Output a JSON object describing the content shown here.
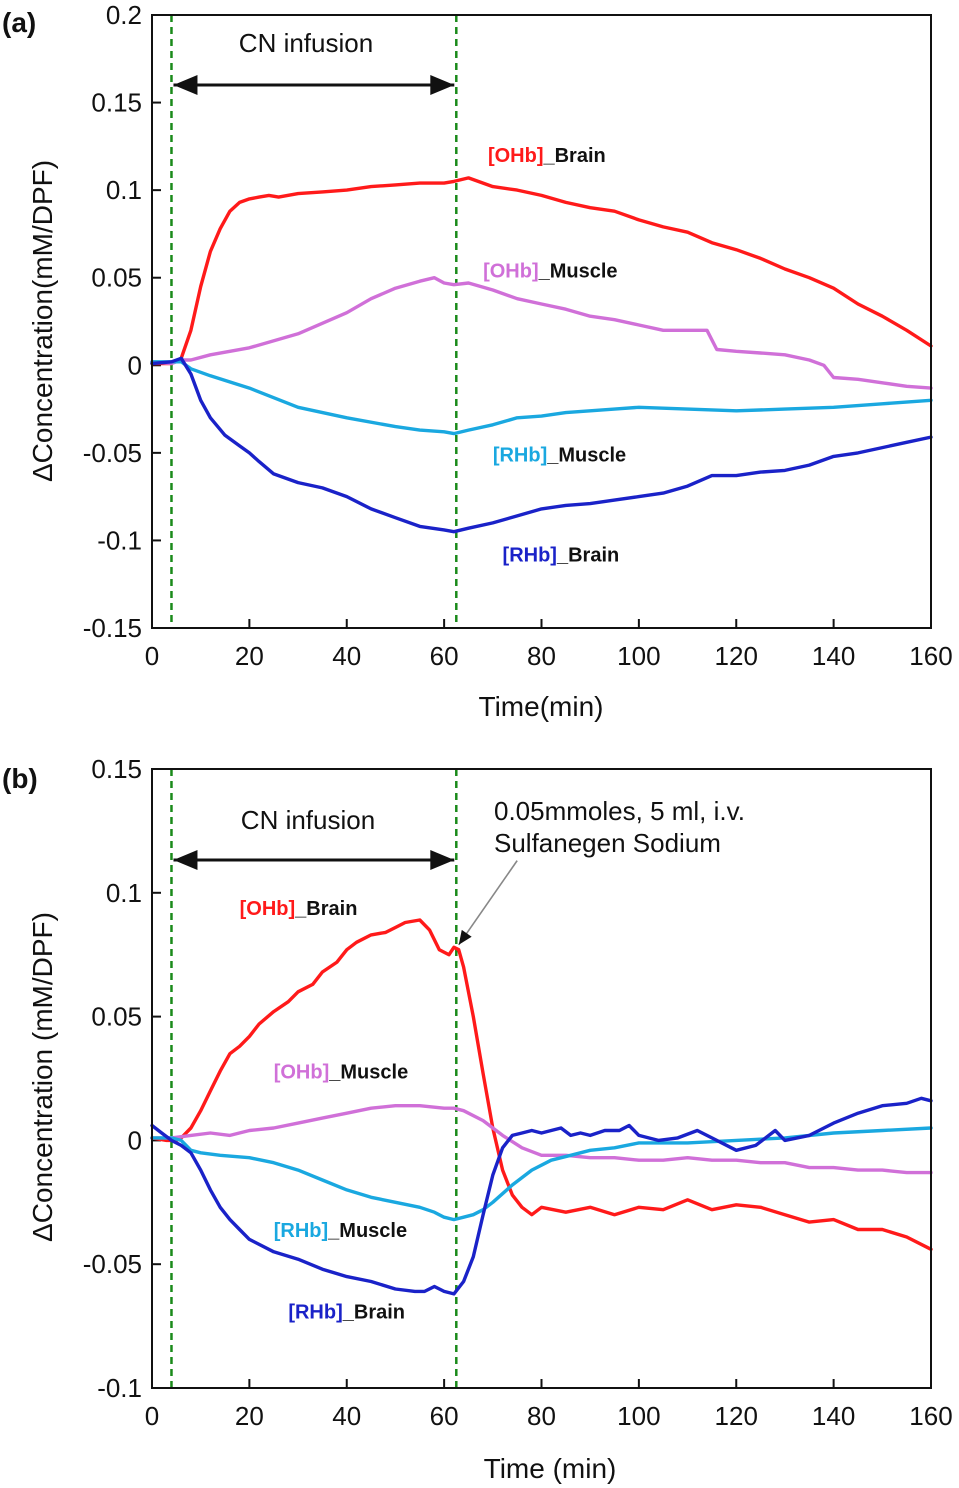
{
  "chart_data": [
    {
      "type": "line",
      "panel": "(a)",
      "xlabel": "Time(min)",
      "ylabel": "ΔConcentration(mM/DPF)",
      "xlim": [
        0,
        160
      ],
      "ylim": [
        -0.15,
        0.2
      ],
      "xticks": [
        0,
        20,
        40,
        60,
        80,
        100,
        120,
        140,
        160
      ],
      "yticks": [
        -0.15,
        -0.1,
        -0.05,
        0,
        0.05,
        0.1,
        0.15,
        0.2
      ],
      "xtick_labels": [
        "0",
        "20",
        "40",
        "60",
        "80",
        "100",
        "120",
        "140",
        "160"
      ],
      "ytick_labels": [
        "-0.15",
        "-0.1",
        "-0.05",
        "0",
        "0.05",
        "0.1",
        "0.15",
        "0.2"
      ],
      "vlines": [
        4,
        62.5
      ],
      "infusion_label": "CN infusion",
      "infusion_range": [
        4,
        62.5
      ],
      "series": [
        {
          "name": "[OHb]_Brain",
          "color": "#ff1a1a",
          "label_parts": [
            "[OHb]",
            "_Brain"
          ],
          "label_at": [
            69,
            0.116
          ],
          "x": [
            0,
            4,
            6,
            8,
            10,
            12,
            14,
            16,
            18,
            20,
            22,
            24,
            26,
            30,
            35,
            40,
            45,
            50,
            55,
            60,
            62,
            65,
            70,
            75,
            80,
            85,
            90,
            95,
            100,
            105,
            110,
            115,
            120,
            125,
            130,
            135,
            140,
            145,
            150,
            155,
            160
          ],
          "values": [
            0.001,
            0.001,
            0.004,
            0.02,
            0.045,
            0.065,
            0.078,
            0.088,
            0.093,
            0.095,
            0.096,
            0.097,
            0.096,
            0.098,
            0.099,
            0.1,
            0.102,
            0.103,
            0.104,
            0.104,
            0.105,
            0.107,
            0.102,
            0.1,
            0.097,
            0.093,
            0.09,
            0.088,
            0.083,
            0.079,
            0.076,
            0.07,
            0.066,
            0.061,
            0.055,
            0.05,
            0.044,
            0.035,
            0.028,
            0.02,
            0.011
          ]
        },
        {
          "name": "[OHb]_Muscle",
          "color": "#d070d8",
          "label_parts": [
            "[OHb]",
            "_Muscle"
          ],
          "label_at": [
            68,
            0.05
          ],
          "x": [
            0,
            4,
            6,
            8,
            12,
            20,
            30,
            40,
            45,
            50,
            55,
            58,
            60,
            62,
            65,
            70,
            75,
            80,
            85,
            90,
            95,
            100,
            105,
            110,
            114,
            116,
            120,
            125,
            130,
            135,
            138,
            140,
            145,
            150,
            155,
            160
          ],
          "values": [
            0.002,
            0.001,
            0.003,
            0.003,
            0.006,
            0.01,
            0.018,
            0.03,
            0.038,
            0.044,
            0.048,
            0.05,
            0.047,
            0.046,
            0.047,
            0.043,
            0.038,
            0.035,
            0.032,
            0.028,
            0.026,
            0.023,
            0.02,
            0.02,
            0.02,
            0.009,
            0.008,
            0.007,
            0.006,
            0.003,
            0.0,
            -0.007,
            -0.008,
            -0.01,
            -0.012,
            -0.013
          ]
        },
        {
          "name": "[RHb]_Muscle",
          "color": "#1aa8e0",
          "label_parts": [
            "[RHb]",
            "_Muscle"
          ],
          "label_at": [
            70,
            -0.055
          ],
          "x": [
            0,
            4,
            6,
            8,
            12,
            20,
            30,
            40,
            50,
            55,
            60,
            62,
            65,
            70,
            75,
            80,
            85,
            90,
            95,
            100,
            110,
            120,
            130,
            140,
            150,
            160
          ],
          "values": [
            0.002,
            0.002,
            0.002,
            -0.002,
            -0.006,
            -0.013,
            -0.024,
            -0.03,
            -0.035,
            -0.037,
            -0.038,
            -0.039,
            -0.037,
            -0.034,
            -0.03,
            -0.029,
            -0.027,
            -0.026,
            -0.025,
            -0.024,
            -0.025,
            -0.026,
            -0.025,
            -0.024,
            -0.022,
            -0.02
          ]
        },
        {
          "name": "[RHb]_Brain",
          "color": "#1a22c8",
          "label_parts": [
            "[RHb]",
            "_Brain"
          ],
          "label_at": [
            72,
            -0.112
          ],
          "x": [
            0,
            4,
            6,
            8,
            10,
            12,
            15,
            18,
            20,
            22,
            25,
            28,
            30,
            35,
            40,
            45,
            50,
            55,
            60,
            62,
            65,
            70,
            75,
            80,
            85,
            90,
            95,
            100,
            105,
            110,
            115,
            120,
            125,
            130,
            135,
            140,
            145,
            150,
            155,
            160
          ],
          "values": [
            0.001,
            0.002,
            0.004,
            -0.005,
            -0.02,
            -0.03,
            -0.04,
            -0.046,
            -0.05,
            -0.055,
            -0.062,
            -0.065,
            -0.067,
            -0.07,
            -0.075,
            -0.082,
            -0.087,
            -0.092,
            -0.094,
            -0.095,
            -0.093,
            -0.09,
            -0.086,
            -0.082,
            -0.08,
            -0.079,
            -0.077,
            -0.075,
            -0.073,
            -0.069,
            -0.063,
            -0.063,
            -0.061,
            -0.06,
            -0.057,
            -0.052,
            -0.05,
            -0.047,
            -0.044,
            -0.041
          ]
        }
      ]
    },
    {
      "type": "line",
      "panel": "(b)",
      "xlabel": "Time (min)",
      "ylabel": "ΔConcentration (mM/DPF)",
      "xlim": [
        0,
        160
      ],
      "ylim": [
        -0.1,
        0.15
      ],
      "xticks": [
        0,
        20,
        40,
        60,
        80,
        100,
        120,
        140,
        160
      ],
      "yticks": [
        -0.1,
        -0.05,
        0,
        0.05,
        0.1,
        0.15
      ],
      "xtick_labels": [
        "0",
        "20",
        "40",
        "60",
        "80",
        "100",
        "120",
        "140",
        "160"
      ],
      "ytick_labels": [
        "-0.1",
        "-0.05",
        "0",
        "0.05",
        "0.1",
        "0.15"
      ],
      "vlines": [
        4,
        62.5
      ],
      "infusion_label": "CN infusion",
      "infusion_range": [
        4,
        62.5
      ],
      "annotation_lines": [
        "0.05mmoles, 5 ml, i.v.",
        "Sulfanegen Sodium"
      ],
      "annotation_target": [
        63,
        0.079
      ],
      "annotation_from": [
        75,
        0.113
      ],
      "series": [
        {
          "name": "[OHb]_Brain",
          "color": "#ff1a1a",
          "label_parts": [
            "[OHb]",
            "_Brain"
          ],
          "label_at": [
            18,
            0.091
          ],
          "x": [
            0,
            3,
            5,
            6,
            8,
            10,
            12,
            14,
            16,
            18,
            20,
            22,
            25,
            28,
            30,
            33,
            35,
            38,
            40,
            42,
            45,
            48,
            50,
            52,
            55,
            57,
            59,
            61,
            62,
            63,
            64,
            66,
            68,
            70,
            72,
            74,
            76,
            78,
            80,
            85,
            90,
            95,
            100,
            105,
            110,
            115,
            120,
            125,
            130,
            135,
            140,
            145,
            150,
            155,
            160
          ],
          "values": [
            0.001,
            0.0,
            0.0,
            0.001,
            0.005,
            0.012,
            0.02,
            0.028,
            0.035,
            0.038,
            0.042,
            0.047,
            0.052,
            0.056,
            0.06,
            0.063,
            0.068,
            0.072,
            0.077,
            0.08,
            0.083,
            0.084,
            0.086,
            0.088,
            0.089,
            0.085,
            0.077,
            0.075,
            0.078,
            0.077,
            0.07,
            0.05,
            0.027,
            0.005,
            -0.012,
            -0.022,
            -0.027,
            -0.03,
            -0.027,
            -0.029,
            -0.027,
            -0.03,
            -0.027,
            -0.028,
            -0.024,
            -0.028,
            -0.026,
            -0.027,
            -0.03,
            -0.033,
            -0.032,
            -0.036,
            -0.036,
            -0.039,
            -0.044
          ]
        },
        {
          "name": "[OHb]_Muscle",
          "color": "#d070d8",
          "label_parts": [
            "[OHb]",
            "_Muscle"
          ],
          "label_at": [
            25,
            0.025
          ],
          "x": [
            0,
            4,
            8,
            12,
            16,
            20,
            25,
            30,
            35,
            40,
            45,
            50,
            55,
            60,
            62,
            64,
            68,
            72,
            76,
            80,
            85,
            90,
            95,
            100,
            105,
            110,
            115,
            120,
            125,
            130,
            135,
            140,
            145,
            150,
            155,
            160
          ],
          "values": [
            0.001,
            0.001,
            0.002,
            0.003,
            0.002,
            0.004,
            0.005,
            0.007,
            0.009,
            0.011,
            0.013,
            0.014,
            0.014,
            0.013,
            0.013,
            0.012,
            0.008,
            0.002,
            -0.003,
            -0.006,
            -0.006,
            -0.007,
            -0.007,
            -0.008,
            -0.008,
            -0.007,
            -0.008,
            -0.008,
            -0.009,
            -0.009,
            -0.011,
            -0.011,
            -0.012,
            -0.012,
            -0.013,
            -0.013
          ]
        },
        {
          "name": "[RHb]_Muscle",
          "color": "#1aa8e0",
          "label_parts": [
            "[RHb]",
            "_Muscle"
          ],
          "label_at": [
            25,
            -0.039
          ],
          "x": [
            0,
            4,
            6,
            8,
            10,
            14,
            20,
            25,
            30,
            35,
            40,
            45,
            50,
            55,
            58,
            60,
            62,
            64,
            66,
            68,
            70,
            74,
            78,
            82,
            86,
            90,
            95,
            100,
            110,
            120,
            130,
            140,
            150,
            160
          ],
          "values": [
            0.001,
            0.001,
            0.0,
            -0.004,
            -0.005,
            -0.006,
            -0.007,
            -0.009,
            -0.012,
            -0.016,
            -0.02,
            -0.023,
            -0.025,
            -0.027,
            -0.029,
            -0.031,
            -0.032,
            -0.031,
            -0.03,
            -0.028,
            -0.025,
            -0.018,
            -0.012,
            -0.008,
            -0.006,
            -0.004,
            -0.003,
            -0.001,
            -0.001,
            0.0,
            0.001,
            0.003,
            0.004,
            0.005
          ]
        },
        {
          "name": "[RHb]_Brain",
          "color": "#1a22c8",
          "label_parts": [
            "[RHb]",
            "_Brain"
          ],
          "label_at": [
            28,
            -0.072
          ],
          "x": [
            0,
            2,
            4,
            6,
            8,
            10,
            12,
            14,
            16,
            18,
            20,
            25,
            30,
            35,
            40,
            45,
            50,
            54,
            56,
            58,
            60,
            62,
            64,
            66,
            68,
            70,
            72,
            74,
            76,
            78,
            80,
            82,
            84,
            86,
            88,
            90,
            93,
            96,
            98,
            100,
            104,
            108,
            112,
            116,
            120,
            124,
            128,
            130,
            135,
            140,
            145,
            150,
            155,
            158,
            160
          ],
          "values": [
            0.006,
            0.003,
            0.0,
            -0.002,
            -0.005,
            -0.012,
            -0.02,
            -0.027,
            -0.032,
            -0.036,
            -0.04,
            -0.045,
            -0.048,
            -0.052,
            -0.055,
            -0.057,
            -0.06,
            -0.061,
            -0.061,
            -0.059,
            -0.061,
            -0.062,
            -0.057,
            -0.047,
            -0.03,
            -0.014,
            -0.003,
            0.002,
            0.003,
            0.004,
            0.003,
            0.004,
            0.005,
            0.002,
            0.003,
            0.002,
            0.004,
            0.004,
            0.006,
            0.002,
            0.0,
            0.001,
            0.004,
            0.0,
            -0.004,
            -0.002,
            0.004,
            0.0,
            0.002,
            0.007,
            0.011,
            0.014,
            0.015,
            0.017,
            0.016
          ]
        }
      ]
    }
  ]
}
